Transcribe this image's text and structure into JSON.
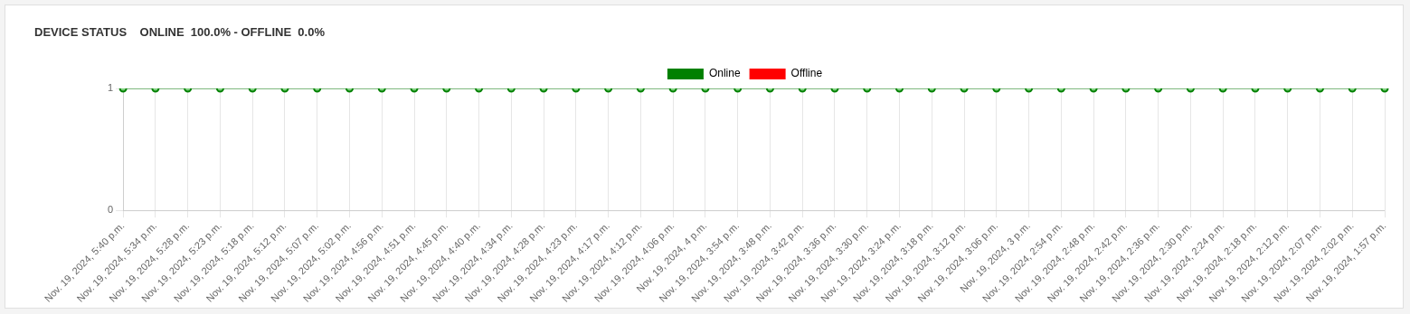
{
  "chart_data": {
    "type": "line",
    "title": "DEVICE STATUS    ONLINE  100.0% - OFFLINE  0.0%",
    "categories": [
      "Nov. 19, 2024, 5:40 p.m.",
      "Nov. 19, 2024, 5:34 p.m.",
      "Nov. 19, 2024, 5:28 p.m.",
      "Nov. 19, 2024, 5:23 p.m.",
      "Nov. 19, 2024, 5:18 p.m.",
      "Nov. 19, 2024, 5:12 p.m.",
      "Nov. 19, 2024, 5:07 p.m.",
      "Nov. 19, 2024, 5:02 p.m.",
      "Nov. 19, 2024, 4:56 p.m.",
      "Nov. 19, 2024, 4:51 p.m.",
      "Nov. 19, 2024, 4:45 p.m.",
      "Nov. 19, 2024, 4:40 p.m.",
      "Nov. 19, 2024, 4:34 p.m.",
      "Nov. 19, 2024, 4:28 p.m.",
      "Nov. 19, 2024, 4:23 p.m.",
      "Nov. 19, 2024, 4:17 p.m.",
      "Nov. 19, 2024, 4:12 p.m.",
      "Nov. 19, 2024, 4:06 p.m.",
      "Nov. 19, 2024, 4 p.m.",
      "Nov. 19, 2024, 3:54 p.m.",
      "Nov. 19, 2024, 3:48 p.m.",
      "Nov. 19, 2024, 3:42 p.m.",
      "Nov. 19, 2024, 3:36 p.m.",
      "Nov. 19, 2024, 3:30 p.m.",
      "Nov. 19, 2024, 3:24 p.m.",
      "Nov. 19, 2024, 3:18 p.m.",
      "Nov. 19, 2024, 3:12 p.m.",
      "Nov. 19, 2024, 3:06 p.m.",
      "Nov. 19, 2024, 3 p.m.",
      "Nov. 19, 2024, 2:54 p.m.",
      "Nov. 19, 2024, 2:48 p.m.",
      "Nov. 19, 2024, 2:42 p.m.",
      "Nov. 19, 2024, 2:36 p.m.",
      "Nov. 19, 2024, 2:30 p.m.",
      "Nov. 19, 2024, 2:24 p.m.",
      "Nov. 19, 2024, 2:18 p.m.",
      "Nov. 19, 2024, 2:12 p.m.",
      "Nov. 19, 2024, 2:07 p.m.",
      "Nov. 19, 2024, 2:02 p.m.",
      "Nov. 19, 2024, 1:57 p.m."
    ],
    "series": [
      {
        "name": "Online",
        "color": "#008000",
        "values": [
          1,
          1,
          1,
          1,
          1,
          1,
          1,
          1,
          1,
          1,
          1,
          1,
          1,
          1,
          1,
          1,
          1,
          1,
          1,
          1,
          1,
          1,
          1,
          1,
          1,
          1,
          1,
          1,
          1,
          1,
          1,
          1,
          1,
          1,
          1,
          1,
          1,
          1,
          1,
          1
        ]
      },
      {
        "name": "Offline",
        "color": "#ff0000",
        "values": [
          null,
          null,
          null,
          null,
          null,
          null,
          null,
          null,
          null,
          null,
          null,
          null,
          null,
          null,
          null,
          null,
          null,
          null,
          null,
          null,
          null,
          null,
          null,
          null,
          null,
          null,
          null,
          null,
          null,
          null,
          null,
          null,
          null,
          null,
          null,
          null,
          null,
          null,
          null,
          null
        ]
      }
    ],
    "ylim": [
      0,
      1
    ],
    "yticks": [
      0,
      1
    ],
    "grid": true,
    "legend": "top",
    "marker": "circle",
    "line_style": "solid"
  }
}
